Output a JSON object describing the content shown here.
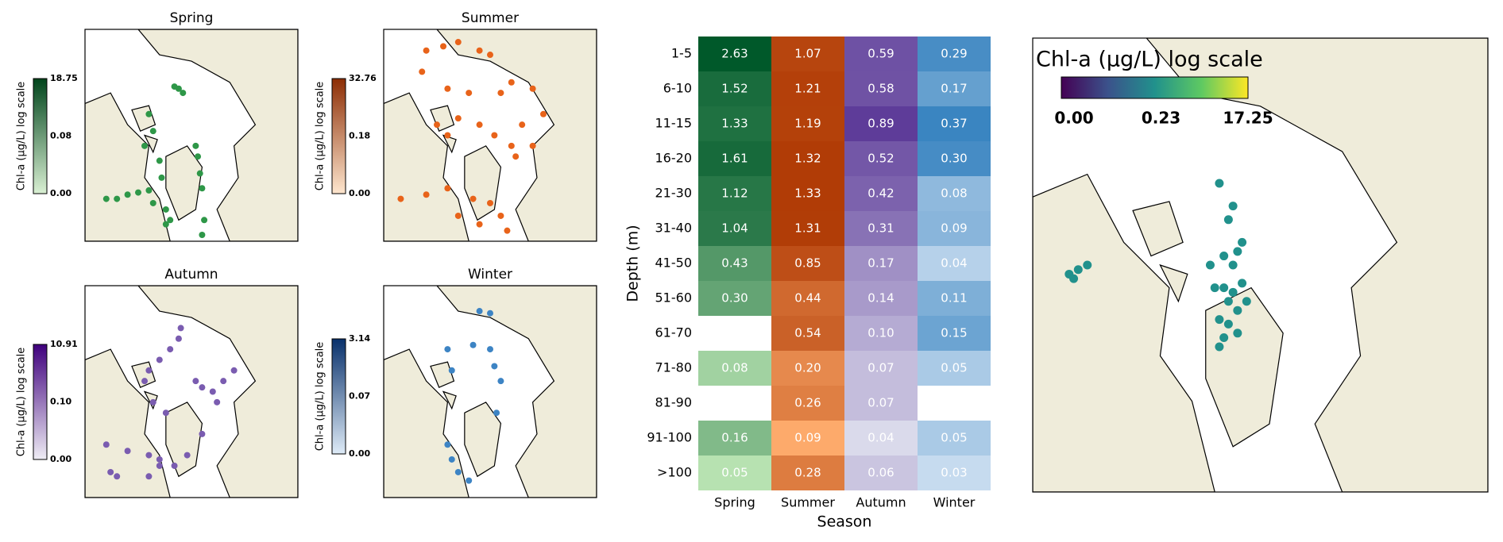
{
  "chart_data": [
    {
      "type": "map",
      "title": "Spring",
      "colorbar_label": "Chl-a (μg/L) log scale",
      "colorbar_ticks": [
        "0.00",
        "0.08",
        "18.75"
      ],
      "color": "#2e9748",
      "cmap": [
        "#d9f0d3",
        "#00441b"
      ],
      "x": [
        44,
        46,
        42,
        30,
        32,
        28,
        35,
        36,
        52,
        53,
        54,
        55,
        56,
        10,
        15,
        20,
        25,
        30,
        32,
        38,
        40,
        38,
        55
      ],
      "y": [
        28,
        30,
        27,
        40,
        48,
        55,
        62,
        70,
        55,
        60,
        68,
        75,
        90,
        80,
        80,
        78,
        77,
        76,
        82,
        85,
        90,
        92,
        97
      ]
    },
    {
      "type": "map",
      "title": "Summer",
      "colorbar_label": "Chl-a (μg/L) log scale",
      "colorbar_ticks": [
        "0.00",
        "0.18",
        "32.76"
      ],
      "color": "#e8631a",
      "cmap": [
        "#fee6ce",
        "#8c2d04"
      ],
      "x": [
        20,
        28,
        35,
        45,
        50,
        18,
        30,
        40,
        55,
        60,
        70,
        75,
        25,
        30,
        35,
        45,
        52,
        60,
        62,
        65,
        70,
        8,
        20,
        30,
        42,
        50,
        55,
        58,
        35,
        45
      ],
      "y": [
        10,
        8,
        6,
        10,
        12,
        20,
        28,
        30,
        30,
        25,
        28,
        40,
        45,
        50,
        42,
        45,
        50,
        55,
        60,
        45,
        55,
        80,
        78,
        75,
        80,
        82,
        88,
        95,
        88,
        92
      ]
    },
    {
      "type": "map",
      "title": "Autumn",
      "colorbar_label": "Chl-a (μg/L) log scale",
      "colorbar_ticks": [
        "0.00",
        "0.10",
        "10.91"
      ],
      "color": "#7a5cb0",
      "cmap": [
        "#efedf5",
        "#3f007d"
      ],
      "x": [
        45,
        44,
        40,
        35,
        30,
        28,
        32,
        38,
        52,
        55,
        60,
        65,
        62,
        70,
        10,
        20,
        30,
        35,
        42,
        48,
        55,
        12,
        15,
        30,
        35
      ],
      "y": [
        20,
        25,
        30,
        35,
        40,
        45,
        55,
        60,
        45,
        48,
        50,
        45,
        55,
        40,
        75,
        78,
        80,
        82,
        85,
        80,
        70,
        88,
        90,
        90,
        85
      ]
    },
    {
      "type": "map",
      "title": "Winter",
      "colorbar_label": "Chl-a (μg/L) log scale",
      "colorbar_ticks": [
        "0.00",
        "0.07",
        "3.14"
      ],
      "color": "#3d84c4",
      "cmap": [
        "#deebf7",
        "#08306b"
      ],
      "x": [
        30,
        45,
        50,
        32,
        42,
        50,
        52,
        55,
        53,
        30,
        32,
        35,
        40
      ],
      "y": [
        30,
        12,
        13,
        40,
        28,
        30,
        38,
        45,
        60,
        75,
        82,
        88,
        92
      ]
    },
    {
      "type": "heatmap",
      "xlabel": "Season",
      "ylabel": "Depth (m)",
      "categories": [
        "1-5",
        "6-10",
        "11-15",
        "16-20",
        "21-30",
        "31-40",
        "41-50",
        "51-60",
        "61-70",
        "71-80",
        "81-90",
        "91-100",
        ">100"
      ],
      "series": [
        {
          "name": "Spring",
          "cmap": [
            "#b7e2b1",
            "#00592a"
          ],
          "values": [
            2.63,
            1.52,
            1.33,
            1.61,
            1.12,
            1.04,
            0.43,
            0.3,
            null,
            0.08,
            null,
            0.16,
            0.05
          ],
          "value_labels": [
            "2.63",
            "1.52",
            "1.33",
            "1.61",
            "1.12",
            "1.04",
            "0.43",
            "0.30",
            null,
            "0.08",
            null,
            "0.16",
            "0.05"
          ]
        },
        {
          "name": "Summer",
          "cmap": [
            "#fdaa6b",
            "#b13c06"
          ],
          "values": [
            1.07,
            1.21,
            1.19,
            1.32,
            1.33,
            1.31,
            0.85,
            0.44,
            0.54,
            0.2,
            0.26,
            0.09,
            0.28
          ],
          "value_labels": [
            "1.07",
            "1.21",
            "1.19",
            "1.32",
            "1.33",
            "1.31",
            "0.85",
            "0.44",
            "0.54",
            "0.20",
            "0.26",
            "0.09",
            "0.28"
          ]
        },
        {
          "name": "Autumn",
          "cmap": [
            "#dadaeb",
            "#5e3c99"
          ],
          "values": [
            0.59,
            0.58,
            0.89,
            0.52,
            0.42,
            0.31,
            0.17,
            0.14,
            0.1,
            0.07,
            0.07,
            0.04,
            0.06
          ],
          "value_labels": [
            "0.59",
            "0.58",
            "0.89",
            "0.52",
            "0.42",
            "0.31",
            "0.17",
            "0.14",
            "0.10",
            "0.07",
            "0.07",
            "0.04",
            "0.06"
          ]
        },
        {
          "name": "Winter",
          "cmap": [
            "#c6dbef",
            "#3a85c1"
          ],
          "values": [
            0.29,
            0.17,
            0.37,
            0.3,
            0.08,
            0.09,
            0.04,
            0.11,
            0.15,
            0.05,
            null,
            0.05,
            0.03
          ],
          "value_labels": [
            "0.29",
            "0.17",
            "0.37",
            "0.30",
            "0.08",
            "0.09",
            "0.04",
            "0.11",
            "0.15",
            "0.05",
            null,
            "0.05",
            "0.03"
          ]
        }
      ]
    },
    {
      "type": "map",
      "colorbar_label": "Chl-a (μg/L) log scale",
      "colorbar_ticks": [
        "0.00",
        "0.23",
        "17.25"
      ],
      "color": "#21918c",
      "cmap": [
        "#440154",
        "#3b528b",
        "#21918c",
        "#5ec962",
        "#fde725"
      ],
      "colorbar_orientation": "horizontal",
      "x": [
        41,
        44,
        43,
        39,
        42,
        45,
        46,
        44,
        42,
        43,
        45,
        47,
        40,
        41,
        43,
        8,
        9,
        10,
        12,
        42,
        41,
        45,
        44,
        46
      ],
      "y": [
        32,
        37,
        40,
        50,
        48,
        47,
        45,
        50,
        55,
        58,
        60,
        58,
        55,
        62,
        63,
        52,
        53,
        51,
        50,
        66,
        68,
        65,
        56,
        54
      ]
    }
  ]
}
